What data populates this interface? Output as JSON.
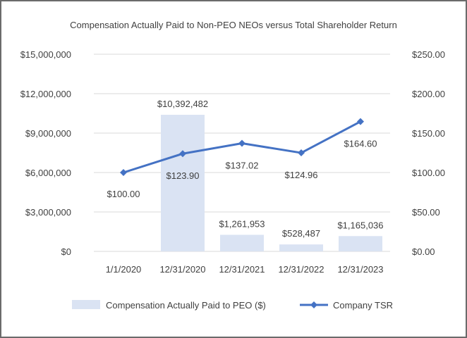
{
  "chart_data": {
    "type": "bar+line",
    "title": "Compensation Actually Paid to Non-PEO NEOs versus Total Shareholder Return",
    "categories": [
      "1/1/2020",
      "12/31/2020",
      "12/31/2021",
      "12/31/2022",
      "12/31/2023"
    ],
    "left_axis": {
      "ylim": [
        0,
        15000000
      ],
      "ticks": [
        0,
        3000000,
        6000000,
        9000000,
        12000000,
        15000000
      ],
      "tick_labels": [
        "$0",
        "$3,000,000",
        "$6,000,000",
        "$9,000,000",
        "$12,000,000",
        "$15,000,000"
      ]
    },
    "right_axis": {
      "ylim": [
        0,
        250
      ],
      "ticks": [
        0,
        50,
        100,
        150,
        200,
        250
      ],
      "tick_labels": [
        "$0.00",
        "$50.00",
        "$100.00",
        "$150.00",
        "$200.00",
        "$250.00"
      ]
    },
    "series": [
      {
        "name": "Compensation Actually Paid to PEO ($)",
        "type": "bar",
        "axis": "left",
        "color": "#dae3f3",
        "values": [
          null,
          10392482,
          1261953,
          528487,
          1165036
        ],
        "labels": [
          "",
          "$10,392,482",
          "$1,261,953",
          "$528,487",
          "$1,165,036"
        ]
      },
      {
        "name": "Company TSR",
        "type": "line",
        "axis": "right",
        "color": "#4472c4",
        "marker": "diamond",
        "values": [
          100.0,
          123.9,
          137.02,
          124.96,
          164.6
        ],
        "labels": [
          "$100.00",
          "$123.90",
          "$137.02",
          "$124.96",
          "$164.60"
        ]
      }
    ],
    "grid": true,
    "legend_position": "bottom"
  }
}
